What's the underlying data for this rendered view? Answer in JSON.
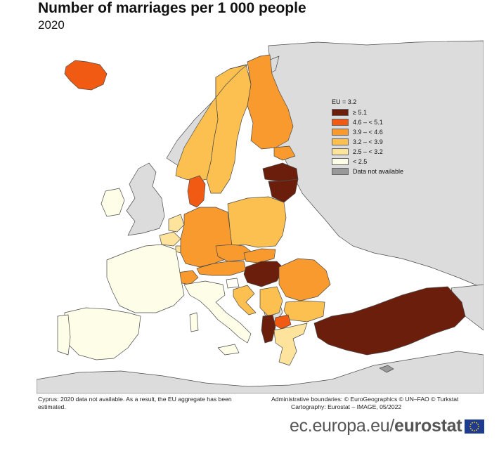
{
  "header": {
    "title": "Number of marriages per 1 000 people",
    "subtitle": "2020"
  },
  "legend": {
    "eu_value": "EU = 3.2",
    "items": [
      {
        "label": "≥ 5.1",
        "color": "#6b1e0b"
      },
      {
        "label": "4.6 – < 5.1",
        "color": "#f15a13"
      },
      {
        "label": "3.9 – < 4.6",
        "color": "#f89a2e"
      },
      {
        "label": "3.2 – < 3.9",
        "color": "#fbc04f"
      },
      {
        "label": "2.5 – < 3.2",
        "color": "#fde39b"
      },
      {
        "label": "< 2.5",
        "color": "#fdfde8"
      },
      {
        "label": "Data not available",
        "color": "#999999"
      }
    ]
  },
  "colors": {
    "sea": "#ffffff",
    "non_eu_land": "#dcdcdc",
    "border": "#4a4a4a"
  },
  "notes": {
    "left": "Cyprus: 2020 data not available. As a result, the EU aggregate has been estimated.",
    "right_line1": "Administrative boundaries: © EuroGeographics © UN–FAO © Turkstat",
    "right_line2": "Cartography: Eurostat – IMAGE, 05/2022"
  },
  "brand": {
    "url": "ec.europa.eu/",
    "name": "eurostat"
  }
}
